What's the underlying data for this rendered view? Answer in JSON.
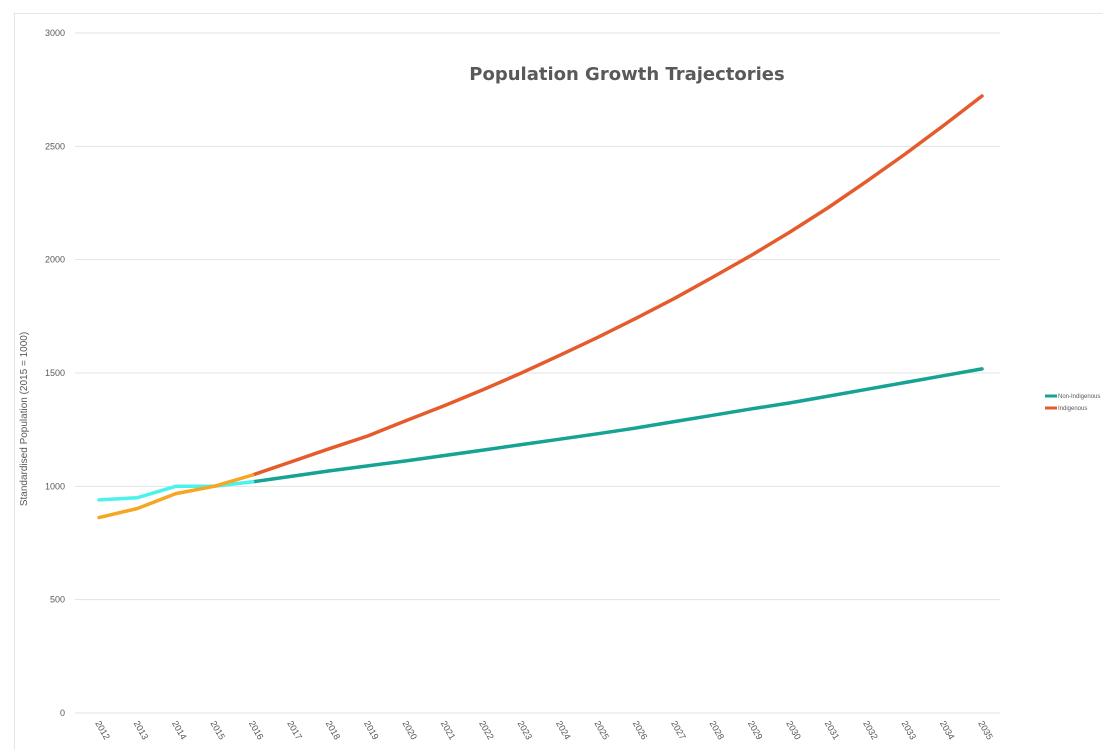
{
  "chart_data": {
    "type": "line",
    "title": "Population Growth Trajectories",
    "xlabel": "",
    "ylabel": "Standardised Population (2015 = 1000)",
    "ylim": [
      0,
      3000
    ],
    "yticks": [
      0,
      500,
      1000,
      1500,
      2000,
      2500,
      3000
    ],
    "grid": true,
    "legend_position": "right",
    "x": [
      "2012",
      "2013",
      "2014",
      "2015",
      "2016",
      "2017",
      "2018",
      "2019",
      "2020",
      "2021",
      "2022",
      "2023",
      "2024",
      "2025",
      "2026",
      "2027",
      "2028",
      "2029",
      "2030",
      "2031",
      "2032",
      "2033",
      "2034",
      "2035"
    ],
    "series": [
      {
        "name": "Non-Indigenous",
        "color": "#16a394",
        "historic_color": "#4ef2ec",
        "historic_until_index": 4,
        "values": [
          940,
          950,
          1000,
          1000,
          1020,
          1044,
          1068,
          1090,
          1112,
          1136,
          1160,
          1184,
          1208,
          1232,
          1258,
          1286,
          1314,
          1342,
          1368,
          1398,
          1428,
          1458,
          1488,
          1518
        ]
      },
      {
        "name": "Indigenous",
        "color": "#e55b2c",
        "historic_color": "#f5a623",
        "historic_until_index": 4,
        "values": [
          862,
          902,
          968,
          1000,
          1050,
          1108,
          1166,
          1222,
          1290,
          1356,
          1426,
          1500,
          1578,
          1658,
          1742,
          1830,
          1924,
          2020,
          2122,
          2230,
          2346,
          2466,
          2592,
          2722
        ]
      }
    ]
  }
}
